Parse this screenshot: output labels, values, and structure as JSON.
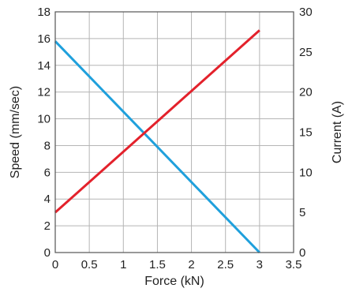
{
  "chart_data": {
    "type": "line",
    "xlabel": "Force (kN)",
    "ylabel_left": "Speed (mm/sec)",
    "ylabel_right": "Current (A)",
    "xlim": [
      0,
      3.5
    ],
    "ylim_left": [
      0,
      18
    ],
    "ylim_right": [
      0,
      30
    ],
    "x_ticks": [
      "0",
      "0.5",
      "1",
      "1.5",
      "2",
      "2.5",
      "3",
      "3.5"
    ],
    "y_left_ticks": [
      "0",
      "2",
      "4",
      "6",
      "8",
      "10",
      "12",
      "14",
      "16",
      "18"
    ],
    "y_right_ticks": [
      "0",
      "5",
      "10",
      "15",
      "20",
      "25",
      "30"
    ],
    "grid": true,
    "series": [
      {
        "axis": "left",
        "color": "#1fa0dc",
        "x": [
          0,
          3
        ],
        "y": [
          15.8,
          0
        ]
      },
      {
        "axis": "right",
        "color": "#e3212b",
        "x": [
          0,
          3
        ],
        "y": [
          5,
          27.7
        ]
      }
    ]
  }
}
